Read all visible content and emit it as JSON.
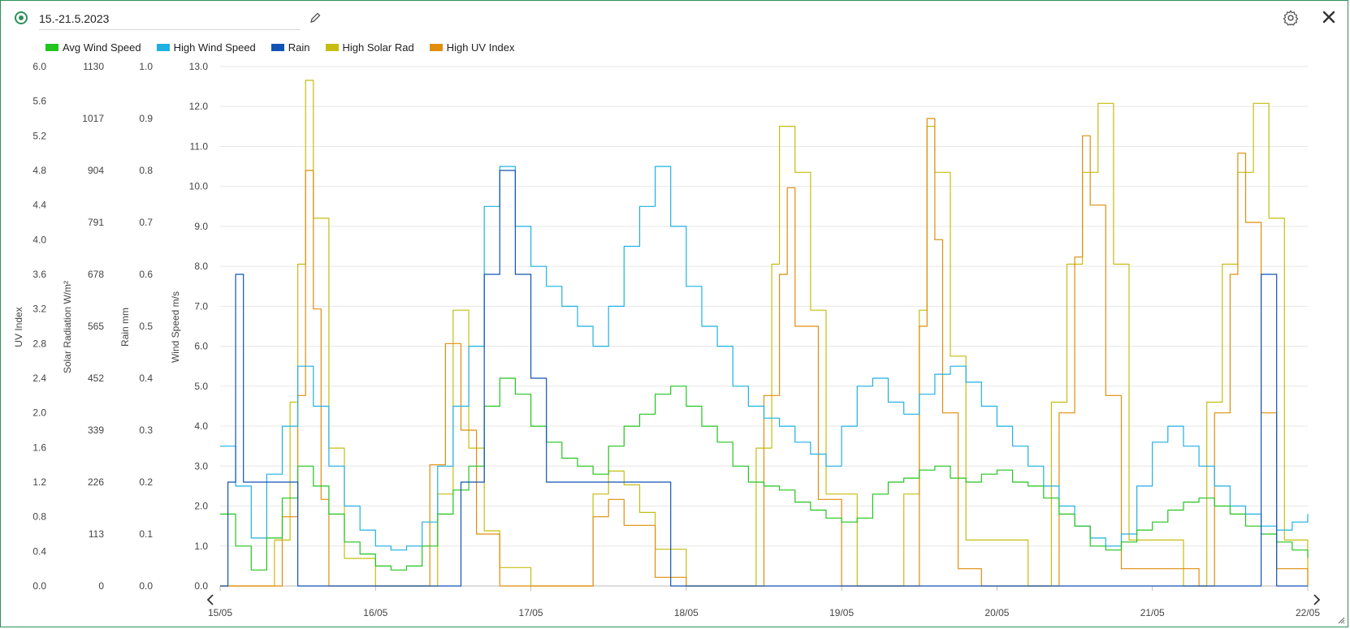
{
  "header": {
    "title": "15.-21.5.2023",
    "icons": [
      "radio-icon",
      "pencil-icon",
      "gear-icon",
      "close-icon"
    ]
  },
  "legend": [
    {
      "name": "Avg Wind Speed",
      "color": "#22c41f"
    },
    {
      "name": "High Wind Speed",
      "color": "#1fb0e2"
    },
    {
      "name": "Rain",
      "color": "#1152b5"
    },
    {
      "name": "High Solar Rad",
      "color": "#c6bd10"
    },
    {
      "name": "High UV Index",
      "color": "#e08d0c"
    }
  ],
  "chart_data": {
    "type": "line",
    "x_axis": {
      "ticks": [
        "15/05",
        "16/05",
        "17/05",
        "18/05",
        "19/05",
        "20/05",
        "21/05",
        "22/05"
      ],
      "range_days": [
        0,
        7
      ]
    },
    "axes": [
      {
        "id": "uv",
        "title": "UV Index",
        "min": 0,
        "max": 6,
        "ticks": [
          "6.0",
          "5.6",
          "5.2",
          "4.8",
          "4.4",
          "4.0",
          "3.6",
          "3.2",
          "2.8",
          "2.4",
          "2.0",
          "1.6",
          "1.2",
          "0.8",
          "0.4",
          "0.0"
        ]
      },
      {
        "id": "solar",
        "title": "Solar Radiation W/m²",
        "min": 0,
        "max": 1130,
        "ticks": [
          "1130",
          "1017",
          "904",
          "791",
          "678",
          "565",
          "452",
          "339",
          "226",
          "113",
          "0"
        ]
      },
      {
        "id": "rain",
        "title": "Rain mm",
        "min": 0,
        "max": 1,
        "ticks": [
          "1.0",
          "0.9",
          "0.8",
          "0.7",
          "0.6",
          "0.5",
          "0.4",
          "0.3",
          "0.2",
          "0.1",
          "0.0"
        ]
      },
      {
        "id": "wind",
        "title": "Wind Speed m/s",
        "min": 0,
        "max": 13,
        "ticks": [
          "13.0",
          "12.0",
          "11.0",
          "10.0",
          "9.0",
          "8.0",
          "7.0",
          "6.0",
          "5.0",
          "4.0",
          "3.0",
          "2.0",
          "1.0",
          "0.0"
        ]
      }
    ],
    "grid": true,
    "series": [
      {
        "name": "Avg Wind Speed",
        "axis": "wind",
        "color": "#22c41f",
        "x": [
          0,
          0.1,
          0.2,
          0.3,
          0.4,
          0.5,
          0.6,
          0.7,
          0.8,
          0.9,
          1.0,
          1.1,
          1.2,
          1.3,
          1.4,
          1.5,
          1.6,
          1.7,
          1.8,
          1.9,
          2.0,
          2.1,
          2.2,
          2.3,
          2.4,
          2.5,
          2.6,
          2.7,
          2.8,
          2.9,
          3.0,
          3.1,
          3.2,
          3.3,
          3.4,
          3.5,
          3.6,
          3.7,
          3.8,
          3.9,
          4.0,
          4.1,
          4.2,
          4.3,
          4.4,
          4.5,
          4.6,
          4.7,
          4.8,
          4.9,
          5.0,
          5.1,
          5.2,
          5.3,
          5.4,
          5.5,
          5.6,
          5.7,
          5.8,
          5.9,
          6.0,
          6.1,
          6.2,
          6.3,
          6.4,
          6.5,
          6.6,
          6.7,
          6.8,
          6.9,
          7.0
        ],
        "y": [
          1.8,
          1.0,
          0.4,
          1.2,
          2.2,
          3.0,
          2.5,
          1.8,
          1.1,
          0.8,
          0.5,
          0.4,
          0.5,
          1.0,
          1.8,
          2.4,
          3.0,
          4.5,
          5.2,
          4.8,
          4.0,
          3.6,
          3.2,
          3.0,
          2.8,
          3.5,
          4.0,
          4.3,
          4.8,
          5.0,
          4.5,
          4.0,
          3.6,
          3.0,
          2.6,
          2.5,
          2.4,
          2.1,
          1.9,
          1.7,
          1.6,
          1.7,
          2.3,
          2.6,
          2.7,
          2.9,
          3.0,
          2.7,
          2.6,
          2.8,
          2.9,
          2.6,
          2.5,
          2.2,
          1.8,
          1.5,
          1.0,
          0.9,
          1.1,
          1.4,
          1.6,
          1.9,
          2.1,
          2.2,
          2.0,
          1.8,
          1.5,
          1.3,
          1.1,
          0.9,
          0.7
        ]
      },
      {
        "name": "High Wind Speed",
        "axis": "wind",
        "color": "#1fb0e2",
        "x": [
          0,
          0.1,
          0.2,
          0.3,
          0.4,
          0.5,
          0.6,
          0.7,
          0.8,
          0.9,
          1.0,
          1.1,
          1.2,
          1.3,
          1.4,
          1.5,
          1.6,
          1.7,
          1.8,
          1.9,
          2.0,
          2.1,
          2.2,
          2.3,
          2.4,
          2.5,
          2.6,
          2.7,
          2.8,
          2.9,
          3.0,
          3.1,
          3.2,
          3.3,
          3.4,
          3.5,
          3.6,
          3.7,
          3.8,
          3.9,
          4.0,
          4.1,
          4.2,
          4.3,
          4.4,
          4.5,
          4.6,
          4.7,
          4.8,
          4.9,
          5.0,
          5.1,
          5.2,
          5.3,
          5.4,
          5.5,
          5.6,
          5.7,
          5.8,
          5.9,
          6.0,
          6.1,
          6.2,
          6.3,
          6.4,
          6.5,
          6.6,
          6.7,
          6.8,
          6.9,
          7.0
        ],
        "y": [
          3.5,
          2.5,
          1.2,
          2.8,
          4.0,
          5.5,
          4.5,
          3.0,
          2.0,
          1.4,
          1.0,
          0.9,
          1.0,
          1.6,
          3.0,
          4.5,
          6.0,
          9.5,
          10.5,
          9.0,
          8.0,
          7.5,
          7.0,
          6.5,
          6.0,
          7.0,
          8.5,
          9.5,
          10.5,
          9.0,
          7.5,
          6.5,
          6.0,
          5.0,
          4.5,
          4.2,
          4.0,
          3.6,
          3.3,
          3.0,
          4.0,
          5.0,
          5.2,
          4.6,
          4.3,
          4.8,
          5.3,
          5.5,
          5.1,
          4.5,
          4.0,
          3.5,
          3.0,
          2.5,
          2.0,
          1.5,
          1.2,
          1.0,
          1.3,
          2.5,
          3.6,
          4.0,
          3.5,
          3.0,
          2.5,
          2.0,
          1.8,
          1.5,
          1.4,
          1.6,
          1.8
        ]
      },
      {
        "name": "Rain",
        "axis": "rain",
        "color": "#1152b5",
        "x": [
          0,
          0.05,
          0.1,
          0.15,
          0.2,
          0.3,
          0.4,
          0.5,
          1.5,
          1.55,
          1.6,
          1.7,
          1.8,
          1.9,
          2.0,
          2.1,
          2.2,
          2.3,
          2.4,
          2.5,
          2.6,
          2.7,
          2.8,
          2.9,
          3.0,
          5.0,
          6.5,
          6.7,
          6.8,
          7.0
        ],
        "y": [
          0,
          0.2,
          0.6,
          0.2,
          0.2,
          0.2,
          0.2,
          0,
          0,
          0.2,
          0.2,
          0.6,
          0.8,
          0.6,
          0.4,
          0.2,
          0.2,
          0.2,
          0.2,
          0.2,
          0.2,
          0.2,
          0.2,
          0,
          0,
          0,
          0,
          0.6,
          0,
          0
        ]
      },
      {
        "name": "High Solar Rad",
        "axis": "solar",
        "color": "#c6bd10",
        "x": [
          0,
          0.2,
          0.35,
          0.45,
          0.5,
          0.55,
          0.6,
          0.7,
          0.8,
          1.0,
          1.3,
          1.4,
          1.5,
          1.6,
          1.7,
          1.8,
          2.0,
          2.2,
          2.4,
          2.5,
          2.6,
          2.7,
          2.8,
          3.0,
          3.3,
          3.45,
          3.55,
          3.6,
          3.7,
          3.8,
          3.9,
          4.1,
          4.3,
          4.4,
          4.5,
          4.55,
          4.6,
          4.7,
          4.8,
          5.2,
          5.35,
          5.45,
          5.55,
          5.65,
          5.75,
          5.85,
          6.2,
          6.35,
          6.45,
          6.55,
          6.65,
          6.75,
          6.85,
          7.0
        ],
        "y": [
          0,
          0,
          100,
          400,
          700,
          1100,
          800,
          300,
          60,
          0,
          0,
          200,
          600,
          300,
          120,
          40,
          0,
          0,
          200,
          250,
          220,
          160,
          80,
          0,
          0,
          300,
          700,
          1000,
          900,
          600,
          200,
          0,
          0,
          200,
          600,
          1000,
          900,
          500,
          100,
          0,
          400,
          700,
          900,
          1050,
          700,
          100,
          0,
          400,
          700,
          900,
          1050,
          800,
          100,
          0
        ]
      },
      {
        "name": "High UV Index",
        "axis": "uv",
        "color": "#e08d0c",
        "x": [
          0,
          0.3,
          0.4,
          0.5,
          0.55,
          0.6,
          0.65,
          0.7,
          1.0,
          1.35,
          1.45,
          1.55,
          1.65,
          1.8,
          2.0,
          2.4,
          2.5,
          2.6,
          2.8,
          3.0,
          3.35,
          3.5,
          3.6,
          3.65,
          3.7,
          3.85,
          4.0,
          4.4,
          4.5,
          4.55,
          4.6,
          4.65,
          4.75,
          4.9,
          5.3,
          5.4,
          5.5,
          5.55,
          5.6,
          5.7,
          5.8,
          6.3,
          6.4,
          6.5,
          6.55,
          6.6,
          6.7,
          6.8,
          7.0
        ],
        "y": [
          0,
          0,
          0.8,
          2.2,
          4.8,
          3.2,
          1.0,
          0,
          0,
          1.4,
          2.8,
          1.8,
          0.6,
          0,
          0,
          0.8,
          1.0,
          0.7,
          0.1,
          0,
          0,
          2.2,
          3.6,
          4.6,
          3.0,
          1.0,
          0,
          0,
          3.0,
          5.4,
          4.0,
          2.0,
          0.2,
          0,
          0,
          2.0,
          3.8,
          5.2,
          4.4,
          2.2,
          0.2,
          0,
          2.0,
          3.6,
          5.0,
          4.2,
          2.0,
          0.2,
          0
        ]
      }
    ]
  }
}
